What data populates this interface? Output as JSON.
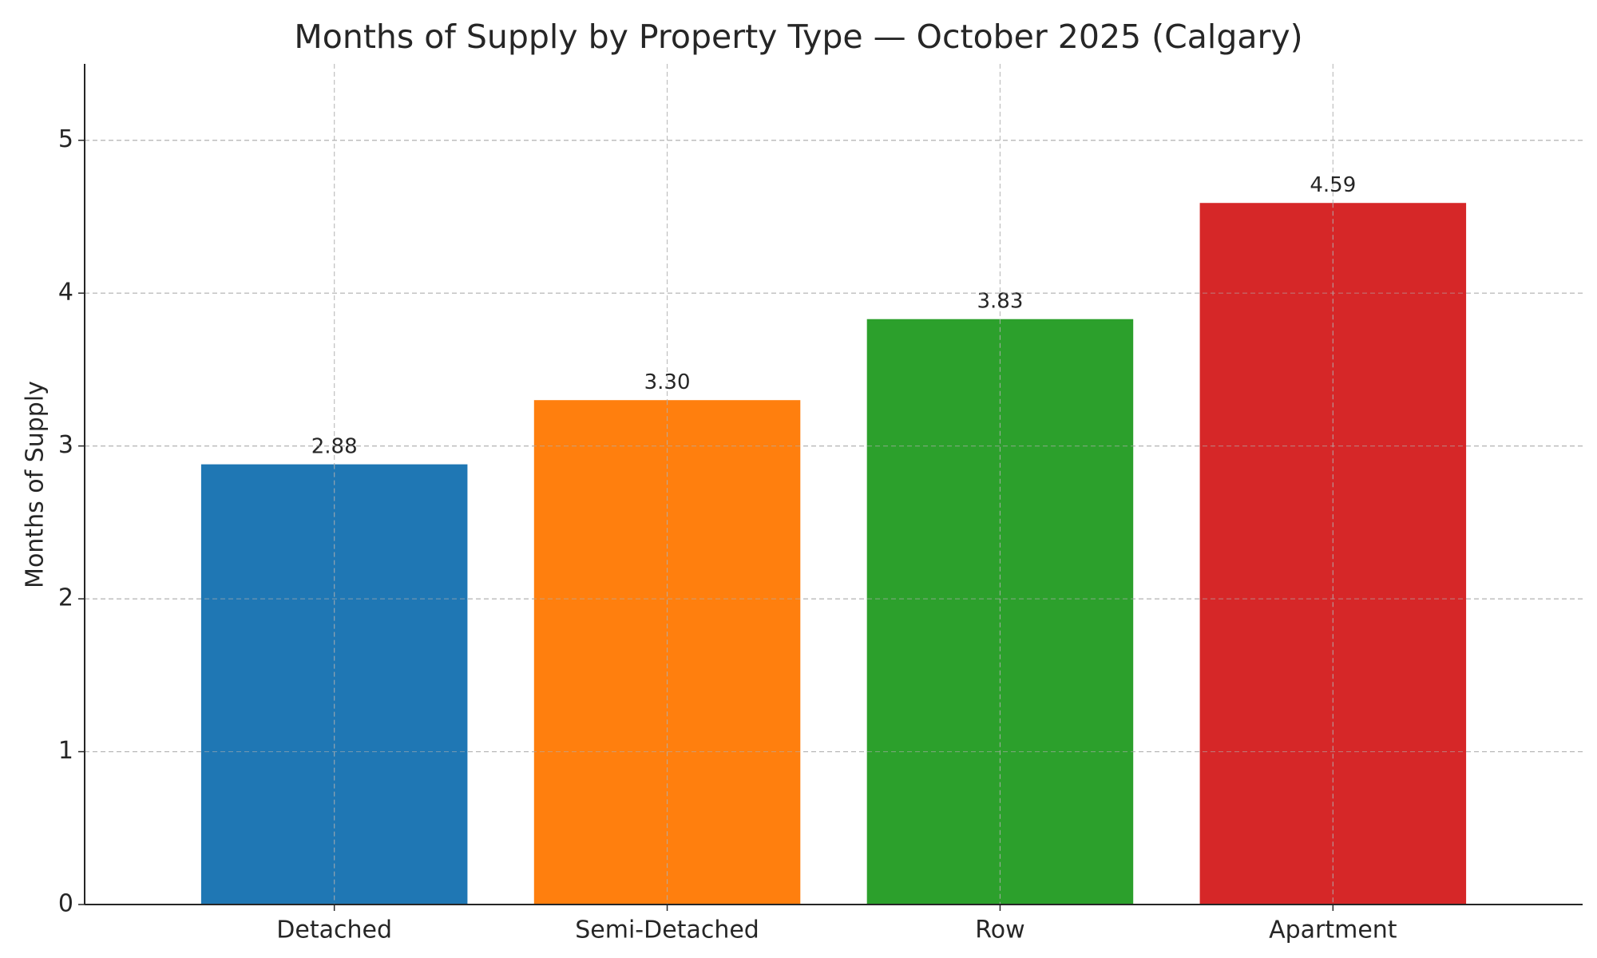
{
  "chart_data": {
    "type": "bar",
    "title": "Months of Supply by Property Type — October 2025 (Calgary)",
    "xlabel": "",
    "ylabel": "Months of Supply",
    "categories": [
      "Detached",
      "Semi-Detached",
      "Row",
      "Apartment"
    ],
    "values": [
      2.88,
      3.3,
      3.83,
      4.59
    ],
    "value_labels": [
      "2.88",
      "3.30",
      "3.83",
      "4.59"
    ],
    "colors": [
      "#1f77b4",
      "#ff7f0e",
      "#2ca02c",
      "#d62728"
    ],
    "ylim": [
      0,
      5.5
    ],
    "yticks": [
      0,
      1,
      2,
      3,
      4,
      5
    ],
    "ytick_labels": [
      "0",
      "1",
      "2",
      "3",
      "4",
      "5"
    ],
    "grid": true,
    "legend": "none"
  }
}
